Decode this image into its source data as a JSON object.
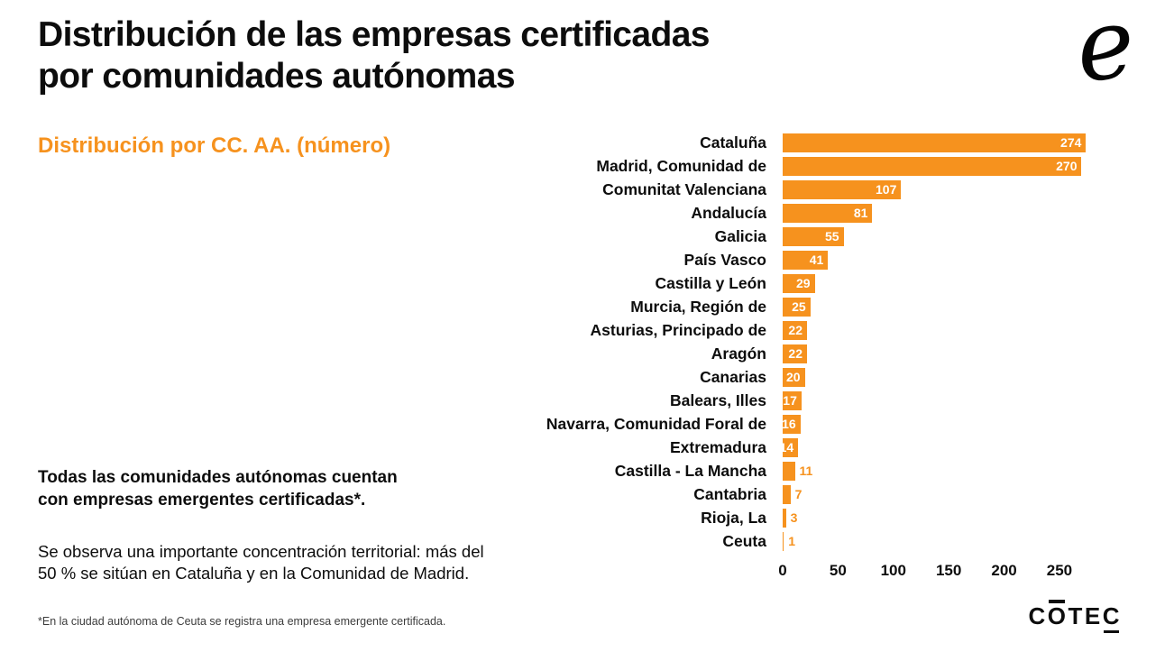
{
  "header": {
    "title_line1": "Distribución de las empresas certificadas",
    "title_line2": "por comunidades autónomas"
  },
  "logo": {
    "glyph": "e"
  },
  "subtitle": "Distribución por CC. AA. (número)",
  "insight": {
    "bold": "Todas las comunidades autónomas cuentan con empresas emergentes certificadas*.",
    "regular": "Se observa una importante concentración territorial: más del 50 % se sitúan en Cataluña y en la Comunidad de Madrid."
  },
  "footnote": "*En la ciudad autónoma de Ceuta se registra una empresa emergente certificada.",
  "footer_logo": {
    "pre": "C",
    "over": "O",
    "mid": "TE",
    "under": "C"
  },
  "colors": {
    "accent": "#F6921E",
    "bar": "#F6921E",
    "value_inside": "#FFFFFF",
    "title_text": "#0D0D0D"
  },
  "chart_data": {
    "type": "bar",
    "orientation": "horizontal",
    "title": "Distribución por CC. AA. (número)",
    "categories": [
      "Cataluña",
      "Madrid, Comunidad de",
      "Comunitat Valenciana",
      "Andalucía",
      "Galicia",
      "País Vasco",
      "Castilla y León",
      "Murcia, Región de",
      "Asturias, Principado de",
      "Aragón",
      "Canarias",
      "Balears, Illes",
      "Navarra, Comunidad Foral de",
      "Extremadura",
      "Castilla - La Mancha",
      "Cantabria",
      "Rioja, La",
      "Ceuta"
    ],
    "values": [
      274,
      270,
      107,
      81,
      55,
      41,
      29,
      25,
      22,
      22,
      20,
      17,
      16,
      14,
      11,
      7,
      3,
      1
    ],
    "xticks": [
      0,
      50,
      100,
      150,
      200,
      250
    ],
    "xmax": 281,
    "inside_label_min": 14,
    "xlabel": "",
    "ylabel": "",
    "legend": false,
    "grid": false
  }
}
